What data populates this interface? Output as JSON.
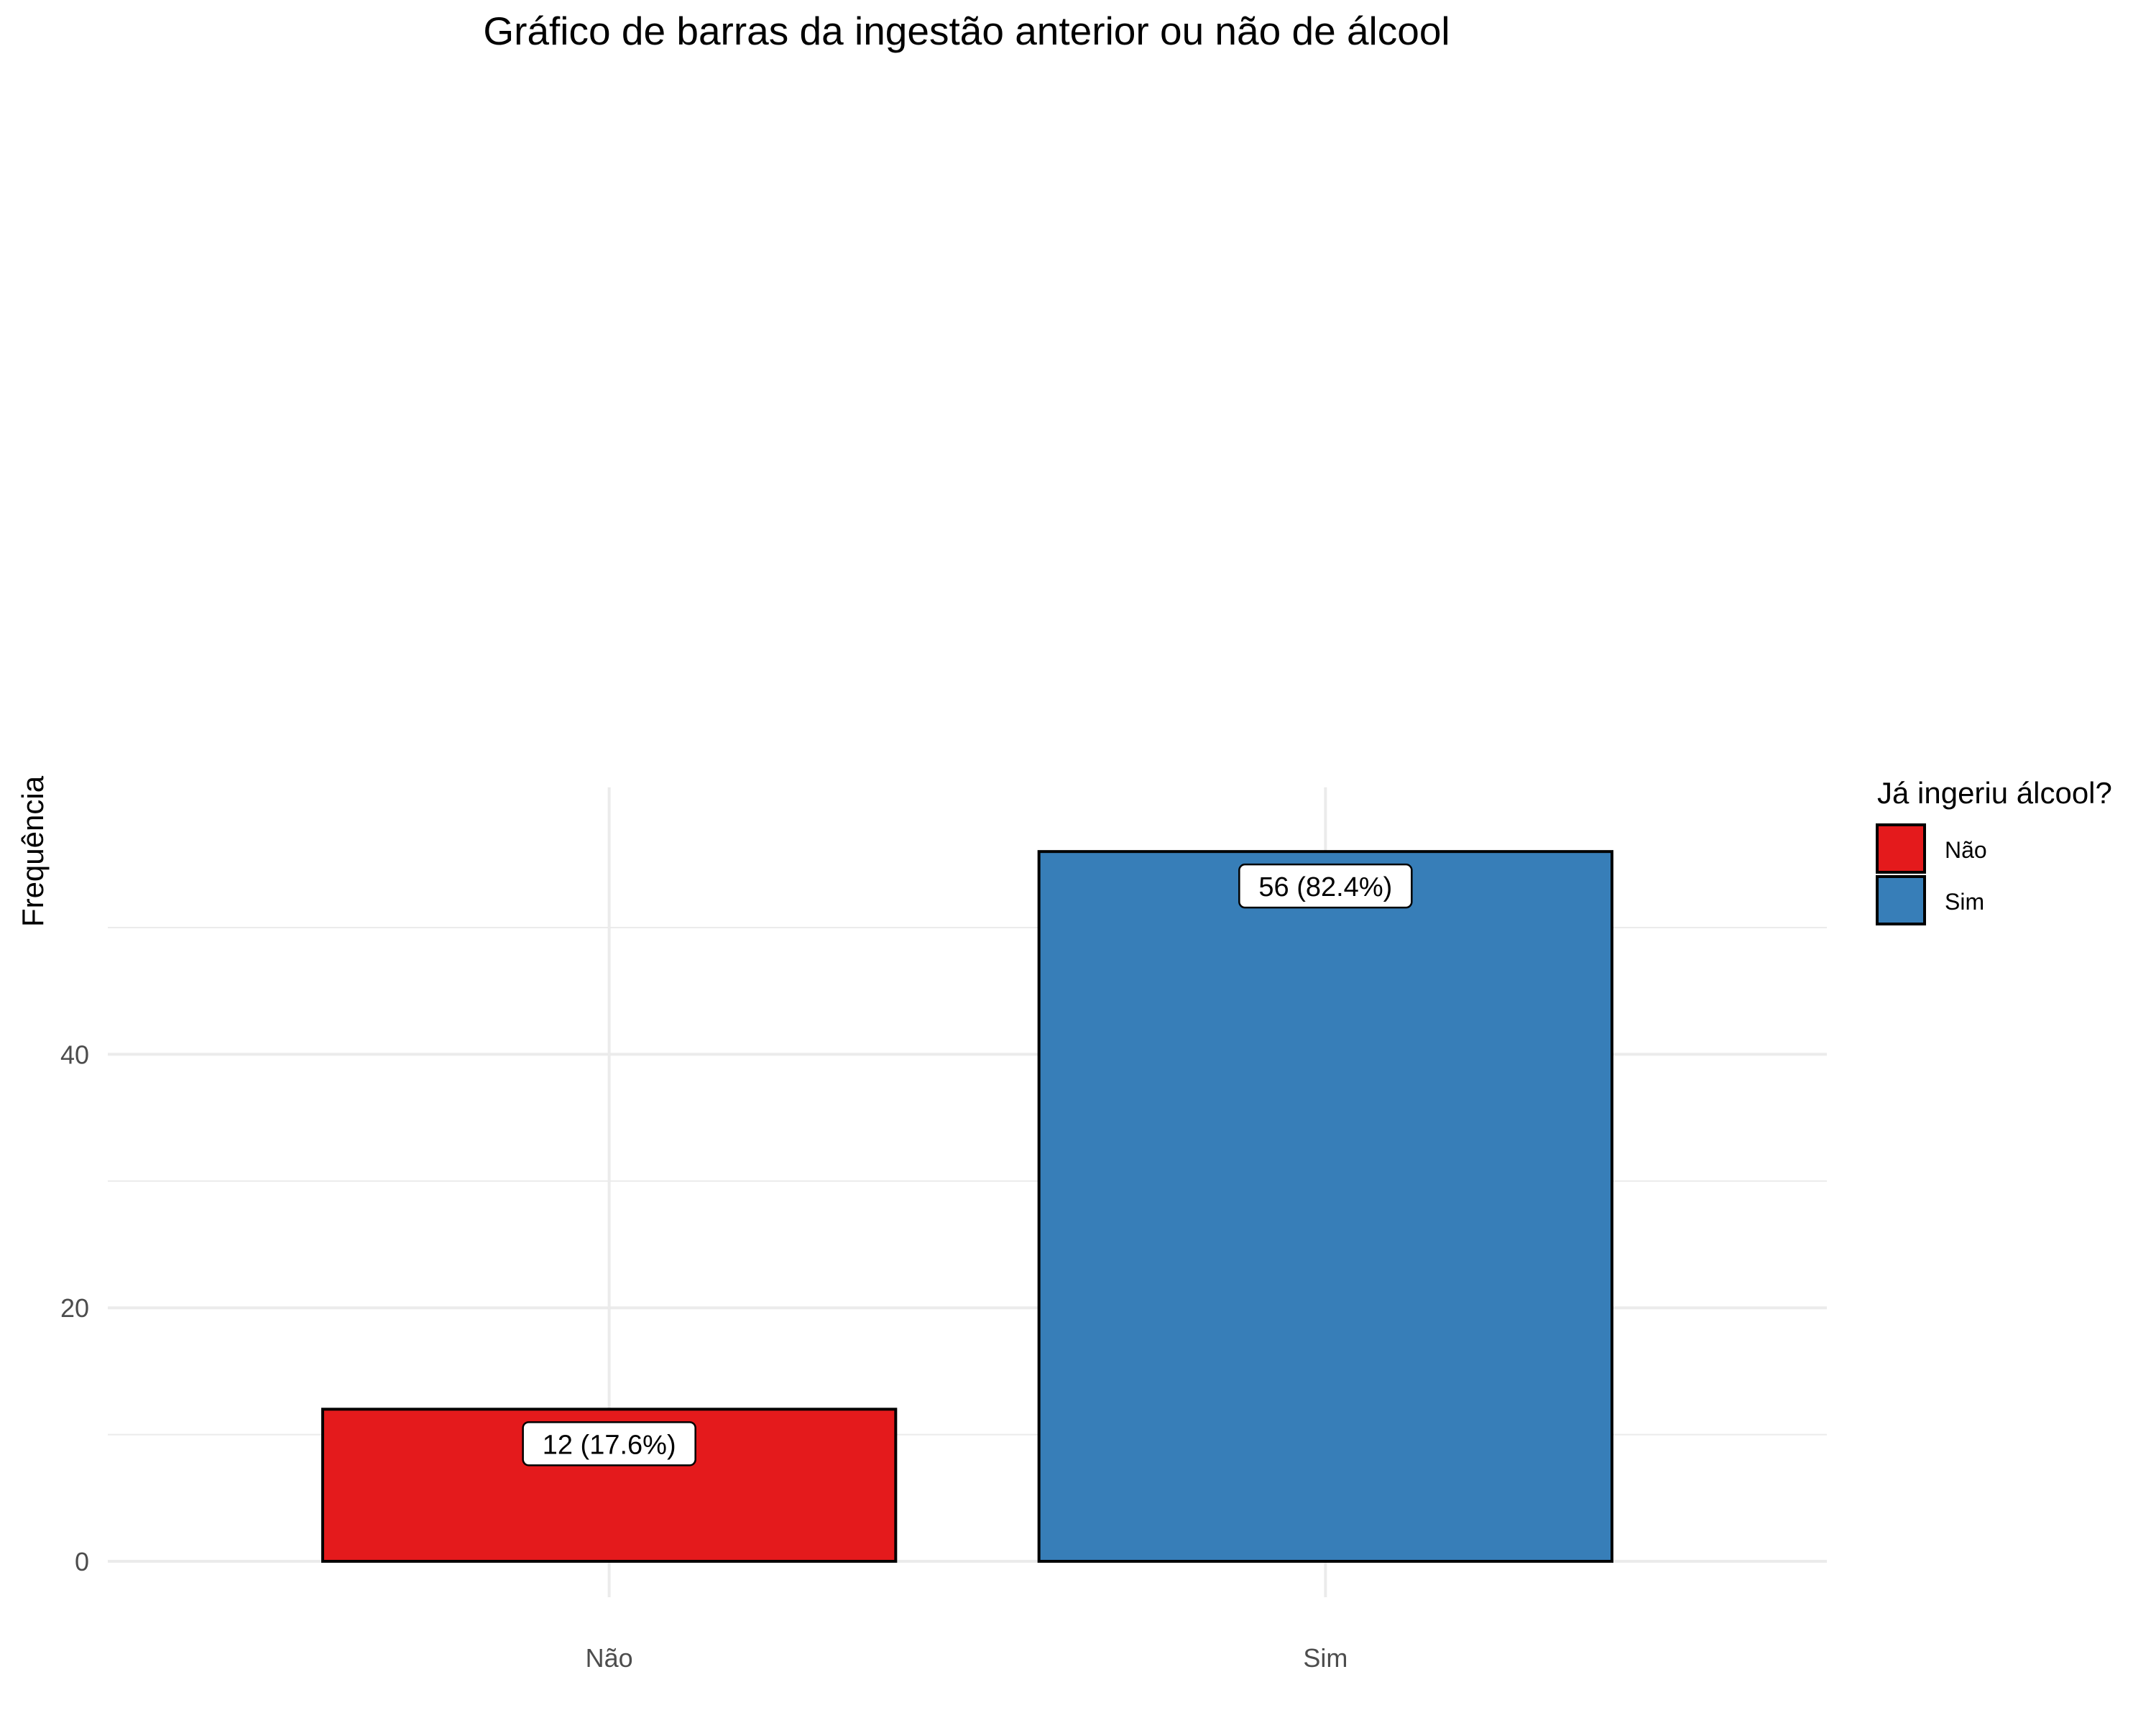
{
  "chart_data": {
    "type": "bar",
    "title": "Gráfico de barras da ingestão anterior ou não de álcool",
    "xlabel": "",
    "ylabel": "Frequência",
    "categories": [
      "Não",
      "Sim"
    ],
    "values": [
      12,
      56
    ],
    "data_labels": [
      "12 (17.6%)",
      "56 (82.4%)"
    ],
    "colors": [
      "#E41A1C",
      "#377EB8"
    ],
    "yticks": [
      0,
      20,
      40
    ],
    "ylim": [
      0,
      58.8
    ],
    "grid": true,
    "legend": {
      "title": "Já ingeriu álcool?",
      "placement": "right",
      "items": [
        {
          "label": "Não",
          "color": "#E41A1C"
        },
        {
          "label": "Sim",
          "color": "#377EB8"
        }
      ]
    }
  }
}
